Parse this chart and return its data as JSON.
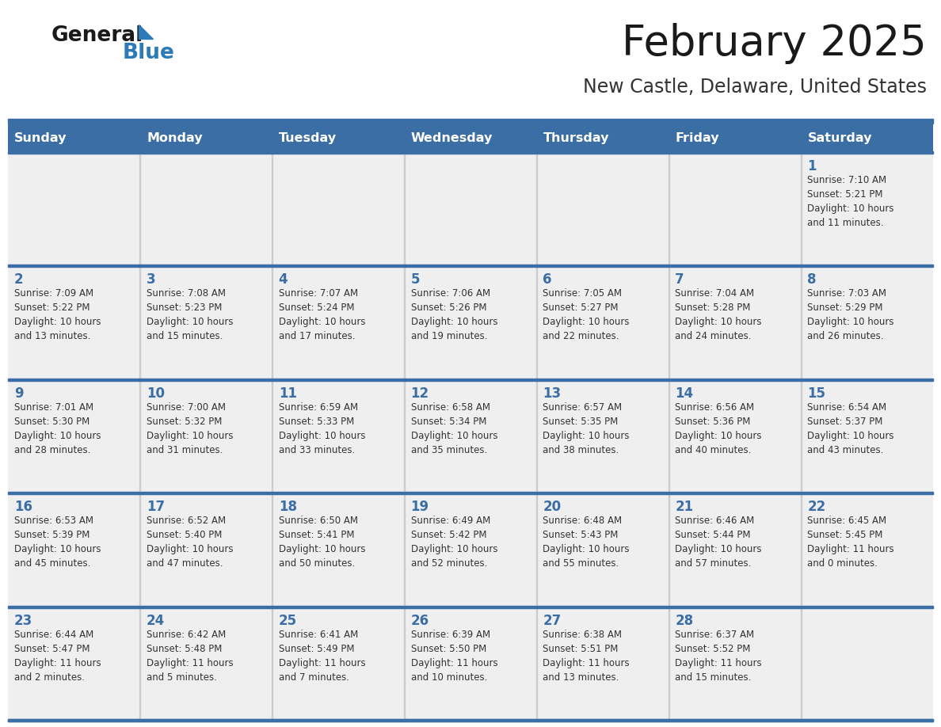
{
  "title": "February 2025",
  "subtitle": "New Castle, Delaware, United States",
  "header_color": "#3a6ea5",
  "header_text_color": "#ffffff",
  "cell_bg_color": "#efefef",
  "border_color": "#3a6ea5",
  "day_number_color": "#3a6ea5",
  "text_color": "#333333",
  "logo_text_color": "#1a1a1a",
  "logo_blue_color": "#2b7bb9",
  "title_color": "#1a1a1a",
  "subtitle_color": "#333333",
  "days_of_week": [
    "Sunday",
    "Monday",
    "Tuesday",
    "Wednesday",
    "Thursday",
    "Friday",
    "Saturday"
  ],
  "weeks": [
    [
      {
        "day": "",
        "info": ""
      },
      {
        "day": "",
        "info": ""
      },
      {
        "day": "",
        "info": ""
      },
      {
        "day": "",
        "info": ""
      },
      {
        "day": "",
        "info": ""
      },
      {
        "day": "",
        "info": ""
      },
      {
        "day": "1",
        "info": "Sunrise: 7:10 AM\nSunset: 5:21 PM\nDaylight: 10 hours\nand 11 minutes."
      }
    ],
    [
      {
        "day": "2",
        "info": "Sunrise: 7:09 AM\nSunset: 5:22 PM\nDaylight: 10 hours\nand 13 minutes."
      },
      {
        "day": "3",
        "info": "Sunrise: 7:08 AM\nSunset: 5:23 PM\nDaylight: 10 hours\nand 15 minutes."
      },
      {
        "day": "4",
        "info": "Sunrise: 7:07 AM\nSunset: 5:24 PM\nDaylight: 10 hours\nand 17 minutes."
      },
      {
        "day": "5",
        "info": "Sunrise: 7:06 AM\nSunset: 5:26 PM\nDaylight: 10 hours\nand 19 minutes."
      },
      {
        "day": "6",
        "info": "Sunrise: 7:05 AM\nSunset: 5:27 PM\nDaylight: 10 hours\nand 22 minutes."
      },
      {
        "day": "7",
        "info": "Sunrise: 7:04 AM\nSunset: 5:28 PM\nDaylight: 10 hours\nand 24 minutes."
      },
      {
        "day": "8",
        "info": "Sunrise: 7:03 AM\nSunset: 5:29 PM\nDaylight: 10 hours\nand 26 minutes."
      }
    ],
    [
      {
        "day": "9",
        "info": "Sunrise: 7:01 AM\nSunset: 5:30 PM\nDaylight: 10 hours\nand 28 minutes."
      },
      {
        "day": "10",
        "info": "Sunrise: 7:00 AM\nSunset: 5:32 PM\nDaylight: 10 hours\nand 31 minutes."
      },
      {
        "day": "11",
        "info": "Sunrise: 6:59 AM\nSunset: 5:33 PM\nDaylight: 10 hours\nand 33 minutes."
      },
      {
        "day": "12",
        "info": "Sunrise: 6:58 AM\nSunset: 5:34 PM\nDaylight: 10 hours\nand 35 minutes."
      },
      {
        "day": "13",
        "info": "Sunrise: 6:57 AM\nSunset: 5:35 PM\nDaylight: 10 hours\nand 38 minutes."
      },
      {
        "day": "14",
        "info": "Sunrise: 6:56 AM\nSunset: 5:36 PM\nDaylight: 10 hours\nand 40 minutes."
      },
      {
        "day": "15",
        "info": "Sunrise: 6:54 AM\nSunset: 5:37 PM\nDaylight: 10 hours\nand 43 minutes."
      }
    ],
    [
      {
        "day": "16",
        "info": "Sunrise: 6:53 AM\nSunset: 5:39 PM\nDaylight: 10 hours\nand 45 minutes."
      },
      {
        "day": "17",
        "info": "Sunrise: 6:52 AM\nSunset: 5:40 PM\nDaylight: 10 hours\nand 47 minutes."
      },
      {
        "day": "18",
        "info": "Sunrise: 6:50 AM\nSunset: 5:41 PM\nDaylight: 10 hours\nand 50 minutes."
      },
      {
        "day": "19",
        "info": "Sunrise: 6:49 AM\nSunset: 5:42 PM\nDaylight: 10 hours\nand 52 minutes."
      },
      {
        "day": "20",
        "info": "Sunrise: 6:48 AM\nSunset: 5:43 PM\nDaylight: 10 hours\nand 55 minutes."
      },
      {
        "day": "21",
        "info": "Sunrise: 6:46 AM\nSunset: 5:44 PM\nDaylight: 10 hours\nand 57 minutes."
      },
      {
        "day": "22",
        "info": "Sunrise: 6:45 AM\nSunset: 5:45 PM\nDaylight: 11 hours\nand 0 minutes."
      }
    ],
    [
      {
        "day": "23",
        "info": "Sunrise: 6:44 AM\nSunset: 5:47 PM\nDaylight: 11 hours\nand 2 minutes."
      },
      {
        "day": "24",
        "info": "Sunrise: 6:42 AM\nSunset: 5:48 PM\nDaylight: 11 hours\nand 5 minutes."
      },
      {
        "day": "25",
        "info": "Sunrise: 6:41 AM\nSunset: 5:49 PM\nDaylight: 11 hours\nand 7 minutes."
      },
      {
        "day": "26",
        "info": "Sunrise: 6:39 AM\nSunset: 5:50 PM\nDaylight: 11 hours\nand 10 minutes."
      },
      {
        "day": "27",
        "info": "Sunrise: 6:38 AM\nSunset: 5:51 PM\nDaylight: 11 hours\nand 13 minutes."
      },
      {
        "day": "28",
        "info": "Sunrise: 6:37 AM\nSunset: 5:52 PM\nDaylight: 11 hours\nand 15 minutes."
      },
      {
        "day": "",
        "info": ""
      }
    ]
  ]
}
